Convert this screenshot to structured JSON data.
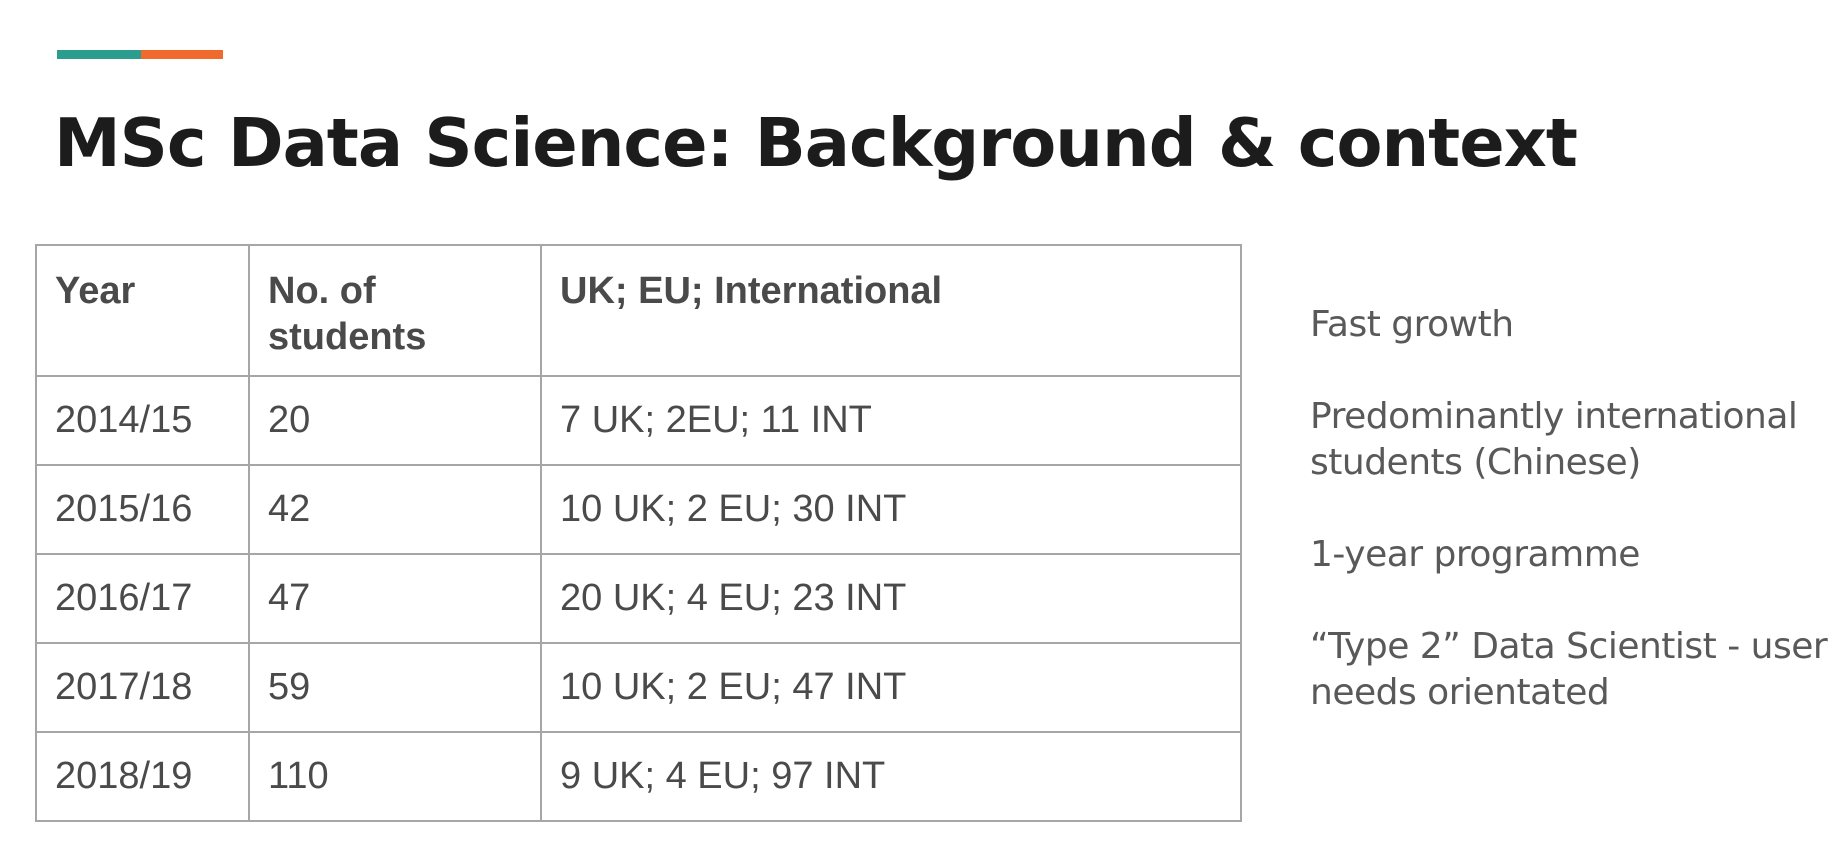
{
  "colors": {
    "accent_teal": "#2a9d8f",
    "accent_orange": "#f06a2d"
  },
  "slide": {
    "title": "MSc Data Science: Background & context"
  },
  "table": {
    "headers": [
      "Year",
      "No. of students",
      "UK; EU; International"
    ],
    "rows": [
      [
        "2014/15",
        "20",
        "7 UK; 2EU; 11 INT"
      ],
      [
        "2015/16",
        "42",
        "10 UK; 2 EU; 30 INT"
      ],
      [
        "2016/17",
        "47",
        "20 UK; 4 EU; 23 INT"
      ],
      [
        "2017/18",
        "59",
        "10 UK; 2 EU; 47 INT"
      ],
      [
        "2018/19",
        "110",
        "9 UK; 4 EU; 97 INT"
      ]
    ]
  },
  "notes": [
    "Fast growth",
    "Predominantly international students (Chinese)",
    "1-year programme",
    "“Type 2” Data Scientist - user needs orientated"
  ]
}
